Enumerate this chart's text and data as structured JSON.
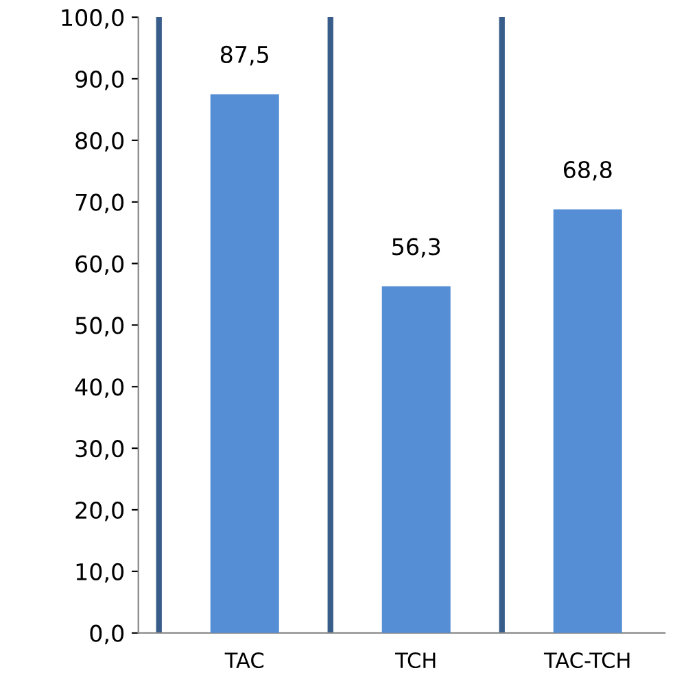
{
  "chart_data": {
    "type": "bar",
    "categories": [
      "TAC",
      "TCH",
      "TAC-TCH"
    ],
    "values": [
      87.5,
      56.3,
      68.8
    ],
    "color": "#558ed5",
    "value_labels": [
      "87,5",
      "56,3",
      "68,8"
    ],
    "ylim": [
      0,
      100
    ],
    "yticks": [
      {
        "value": 0,
        "label": "0,0"
      },
      {
        "value": 10,
        "label": "10,0"
      },
      {
        "value": 20,
        "label": "20,0"
      },
      {
        "value": 30,
        "label": "30,0"
      },
      {
        "value": 40,
        "label": "40,0"
      },
      {
        "value": 50,
        "label": "50,0"
      },
      {
        "value": 60,
        "label": "60,0"
      },
      {
        "value": 70,
        "label": "70,0"
      },
      {
        "value": 80,
        "label": "80,0"
      },
      {
        "value": 90,
        "label": "90,0"
      },
      {
        "value": 100,
        "label": "100,0"
      }
    ],
    "grid": "x"
  }
}
